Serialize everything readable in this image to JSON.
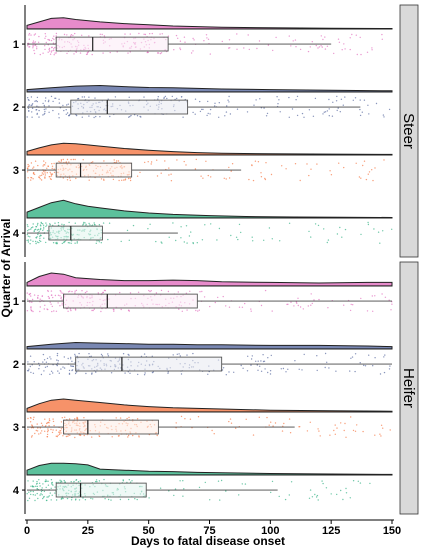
{
  "chart_data": {
    "type": "raincloud",
    "xlabel": "Days to fatal disease onset",
    "ylabel": "Quarter of Arrival",
    "xlim": [
      0,
      150
    ],
    "xticks": [
      0,
      25,
      50,
      75,
      100,
      125,
      150
    ],
    "orientation": "horizontal",
    "colors": {
      "1": "#e377c2",
      "2": "#6272a4",
      "3": "#f57f4f",
      "4": "#3fb68b"
    },
    "panels": [
      {
        "label": "Steer",
        "groups": [
          {
            "quarter": "1",
            "box": {
              "min": 0,
              "q1": 12,
              "median": 27,
              "q3": 58,
              "max": 125
            },
            "density": [
              [
                0,
                0.3
              ],
              [
                5,
                0.6
              ],
              [
                10,
                0.9
              ],
              [
                15,
                0.95
              ],
              [
                20,
                0.8
              ],
              [
                30,
                0.6
              ],
              [
                40,
                0.45
              ],
              [
                50,
                0.35
              ],
              [
                60,
                0.25
              ],
              [
                70,
                0.2
              ],
              [
                80,
                0.15
              ],
              [
                100,
                0.1
              ],
              [
                125,
                0.06
              ],
              [
                150,
                0.04
              ]
            ]
          },
          {
            "quarter": "2",
            "box": {
              "min": 0,
              "q1": 18,
              "median": 33,
              "q3": 66,
              "max": 137
            },
            "density": [
              [
                0,
                0.2
              ],
              [
                10,
                0.35
              ],
              [
                20,
                0.5
              ],
              [
                30,
                0.55
              ],
              [
                40,
                0.45
              ],
              [
                50,
                0.38
              ],
              [
                60,
                0.35
              ],
              [
                70,
                0.3
              ],
              [
                80,
                0.25
              ],
              [
                100,
                0.2
              ],
              [
                125,
                0.15
              ],
              [
                150,
                0.1
              ]
            ]
          },
          {
            "quarter": "3",
            "box": {
              "min": 0,
              "q1": 12,
              "median": 22,
              "q3": 43,
              "max": 88
            },
            "density": [
              [
                0,
                0.3
              ],
              [
                5,
                0.6
              ],
              [
                10,
                0.85
              ],
              [
                15,
                1.0
              ],
              [
                20,
                0.95
              ],
              [
                25,
                0.85
              ],
              [
                30,
                0.75
              ],
              [
                40,
                0.55
              ],
              [
                50,
                0.4
              ],
              [
                60,
                0.28
              ],
              [
                70,
                0.2
              ],
              [
                80,
                0.15
              ],
              [
                100,
                0.1
              ],
              [
                125,
                0.07
              ],
              [
                150,
                0.05
              ]
            ]
          },
          {
            "quarter": "4",
            "box": {
              "min": 0,
              "q1": 9,
              "median": 18,
              "q3": 31,
              "max": 62
            },
            "density": [
              [
                0,
                0.5
              ],
              [
                5,
                0.9
              ],
              [
                10,
                1.3
              ],
              [
                15,
                1.5
              ],
              [
                20,
                1.2
              ],
              [
                25,
                1.0
              ],
              [
                30,
                0.85
              ],
              [
                40,
                0.6
              ],
              [
                50,
                0.42
              ],
              [
                60,
                0.3
              ],
              [
                75,
                0.2
              ],
              [
                90,
                0.12
              ],
              [
                110,
                0.08
              ],
              [
                130,
                0.06
              ],
              [
                150,
                0.04
              ]
            ]
          }
        ]
      },
      {
        "label": "Heifer",
        "groups": [
          {
            "quarter": "1",
            "box": {
              "min": 0,
              "q1": 15,
              "median": 33,
              "q3": 70,
              "max": 150
            },
            "density": [
              [
                0,
                0.3
              ],
              [
                5,
                0.8
              ],
              [
                10,
                1.1
              ],
              [
                15,
                1.0
              ],
              [
                20,
                0.7
              ],
              [
                30,
                0.55
              ],
              [
                40,
                0.45
              ],
              [
                50,
                0.45
              ],
              [
                60,
                0.5
              ],
              [
                70,
                0.45
              ],
              [
                80,
                0.35
              ],
              [
                100,
                0.3
              ],
              [
                120,
                0.25
              ],
              [
                140,
                0.3
              ],
              [
                150,
                0.3
              ]
            ]
          },
          {
            "quarter": "2",
            "box": {
              "min": 0,
              "q1": 20,
              "median": 39,
              "q3": 80,
              "max": 150
            },
            "density": [
              [
                0,
                0.2
              ],
              [
                10,
                0.4
              ],
              [
                20,
                0.55
              ],
              [
                30,
                0.5
              ],
              [
                40,
                0.45
              ],
              [
                50,
                0.4
              ],
              [
                60,
                0.4
              ],
              [
                70,
                0.35
              ],
              [
                80,
                0.35
              ],
              [
                100,
                0.3
              ],
              [
                120,
                0.3
              ],
              [
                140,
                0.25
              ],
              [
                150,
                0.2
              ]
            ]
          },
          {
            "quarter": "3",
            "box": {
              "min": 0,
              "q1": 15,
              "median": 25,
              "q3": 54,
              "max": 110
            },
            "density": [
              [
                0,
                0.3
              ],
              [
                5,
                0.7
              ],
              [
                10,
                1.0
              ],
              [
                15,
                1.1
              ],
              [
                20,
                1.0
              ],
              [
                25,
                0.9
              ],
              [
                30,
                0.8
              ],
              [
                40,
                0.6
              ],
              [
                50,
                0.45
              ],
              [
                60,
                0.35
              ],
              [
                70,
                0.3
              ],
              [
                80,
                0.25
              ],
              [
                100,
                0.15
              ],
              [
                125,
                0.1
              ],
              [
                150,
                0.06
              ]
            ]
          },
          {
            "quarter": "4",
            "box": {
              "min": 0,
              "q1": 12,
              "median": 22,
              "q3": 49,
              "max": 103
            },
            "density": [
              [
                0,
                0.4
              ],
              [
                5,
                0.8
              ],
              [
                10,
                1.0
              ],
              [
                15,
                1.0
              ],
              [
                20,
                0.95
              ],
              [
                25,
                0.85
              ],
              [
                30,
                0.5
              ],
              [
                40,
                0.4
              ],
              [
                50,
                0.32
              ],
              [
                60,
                0.28
              ],
              [
                70,
                0.22
              ],
              [
                80,
                0.18
              ],
              [
                100,
                0.12
              ],
              [
                125,
                0.08
              ],
              [
                150,
                0.05
              ]
            ]
          }
        ]
      }
    ]
  }
}
